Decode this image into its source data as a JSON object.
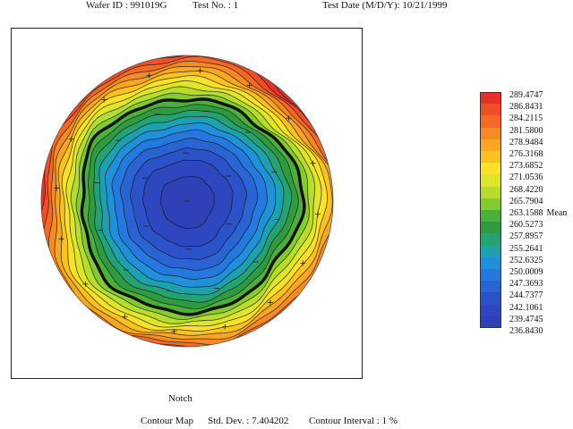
{
  "header": {
    "wafer_id": "Wafer ID : 991019G",
    "test_no": "Test No. : 1",
    "test_date": "Test Date (M/D/Y): 10/21/1999"
  },
  "footer": {
    "notch": "Notch",
    "map_type": "Contour Map",
    "std_dev": "Std. Dev. : 7.404202",
    "contour_interval": "Contour Interval : 1 %"
  },
  "chart_data": {
    "type": "heatmap",
    "title": "Contour Map",
    "mean": 263.1588,
    "std_dev": 7.404202,
    "contour_interval_percent": 1,
    "scale_levels": [
      289.4747,
      286.8431,
      284.2115,
      281.58,
      278.9484,
      276.3168,
      273.6852,
      271.0536,
      268.422,
      265.7904,
      263.1588,
      260.5273,
      257.8957,
      255.2641,
      252.6325,
      250.0009,
      247.3693,
      244.7377,
      242.1061,
      239.4745,
      236.843
    ],
    "scale_labels": [
      "289.4747",
      "286.8431",
      "284.2115",
      "281.5800",
      "278.9484",
      "276.3168",
      "273.6852",
      "271.0536",
      "268.4220",
      "265.7904",
      "263.1588",
      "260.5273",
      "257.8957",
      "255.2641",
      "252.6325",
      "250.0009",
      "247.3693",
      "244.7377",
      "242.1061",
      "239.4745",
      "236.8430"
    ],
    "mean_label": "Mean",
    "mean_level_index": 10,
    "band_colors": [
      "#e8302a",
      "#ee4f28",
      "#f26a26",
      "#f68a25",
      "#f9a624",
      "#fcc222",
      "#fbe127",
      "#dfe52b",
      "#b5dc2f",
      "#82cc32",
      "#4caf3c",
      "#2f9a3f",
      "#25a271",
      "#1fa0b0",
      "#2090d8",
      "#2478de",
      "#2a64d2",
      "#2c52c8",
      "#2e46be",
      "#3040b6"
    ],
    "center_value_approx": 238,
    "edge_value_approx": 282,
    "notch_position": "bottom"
  }
}
